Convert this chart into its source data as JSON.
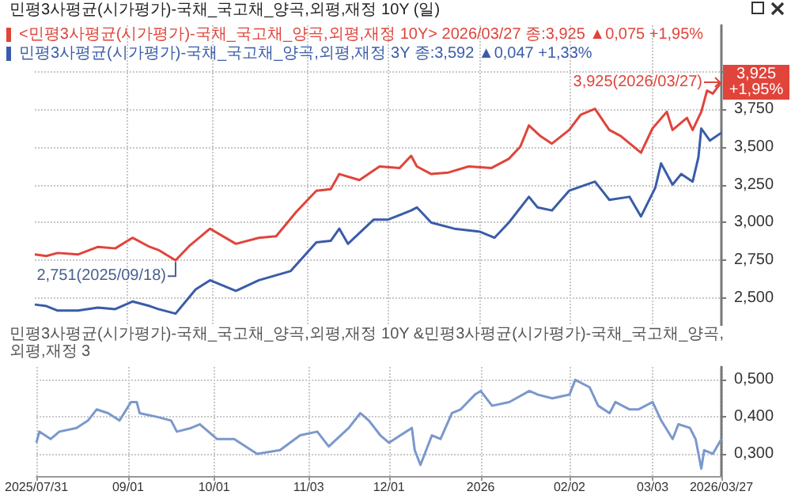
{
  "chart_data": [
    {
      "type": "line",
      "title": "민평3사평균(시가평가)-국채_국고채_양곡,외평,재정 10Y (일)",
      "legend": "top left",
      "grid": true,
      "marker": "none",
      "tick_labels": "y",
      "xlim": [
        "2025-07-31",
        "2026-03-27"
      ],
      "xticks": [
        {
          "value": "2025-09-01",
          "label": null
        },
        {
          "value": "2025-10-01",
          "label": null
        },
        {
          "value": "2025-11-03",
          "label": null
        },
        {
          "value": "2025-12-01",
          "label": null
        },
        {
          "value": "2026-01-02",
          "label": null
        },
        {
          "value": "2026-02-02",
          "label": null
        },
        {
          "value": "2026-03-03",
          "label": null
        }
      ],
      "ylim": [
        2.32,
        4.3
      ],
      "yticks": [
        {
          "value": 2.5,
          "label": "2,500"
        },
        {
          "value": 2.75,
          "label": "2,750"
        },
        {
          "value": 3,
          "label": "3,000"
        },
        {
          "value": 3.25,
          "label": "3,250"
        },
        {
          "value": 3.5,
          "label": "3,500"
        },
        {
          "value": 3.75,
          "label": "3,750"
        },
        {
          "value": 4,
          "label": null
        }
      ],
      "annotations": [
        {
          "text": "3,925(2026/03/27)",
          "x": "2026-03-27",
          "y": 3.925
        },
        {
          "text": "2,751(2025/09/18)",
          "x": "2025-09-18",
          "y": 2.751
        },
        "3,925\n+1,95%"
      ],
      "series": [
        {
          "name": "<민평3사평균(시가평가)-국채_국고채_양곡,외평,재정 10Y> 2026/03/27 종:3,925 ▲0,075 +1,95%",
          "color": "#e0443a",
          "x": [
            "2025-07-31",
            "2025-08-04",
            "2025-08-08",
            "2025-08-15",
            "2025-08-22",
            "2025-08-28",
            "2025-09-03",
            "2025-09-09",
            "2025-09-12",
            "2025-09-18",
            "2025-09-23",
            "2025-09-30",
            "2025-10-09",
            "2025-10-17",
            "2025-10-23",
            "2025-10-30",
            "2025-11-06",
            "2025-11-11",
            "2025-11-14",
            "2025-11-21",
            "2025-11-28",
            "2025-12-05",
            "2025-12-09",
            "2025-12-11",
            "2025-12-16",
            "2025-12-22",
            "2025-12-29",
            "2026-01-06",
            "2026-01-12",
            "2026-01-16",
            "2026-01-19",
            "2026-01-23",
            "2026-01-27",
            "2026-02-02",
            "2026-02-06",
            "2026-02-11",
            "2026-02-16",
            "2026-02-20",
            "2026-02-27",
            "2026-03-03",
            "2026-03-08",
            "2026-03-10",
            "2026-03-15",
            "2026-03-17",
            "2026-03-20",
            "2026-03-22",
            "2026-03-24",
            "2026-03-27"
          ],
          "values": [
            2.79,
            2.78,
            2.8,
            2.79,
            2.84,
            2.83,
            2.9,
            2.84,
            2.82,
            2.751,
            2.85,
            2.96,
            2.86,
            2.9,
            2.91,
            3.07,
            3.21,
            3.22,
            3.32,
            3.28,
            3.37,
            3.36,
            3.44,
            3.37,
            3.32,
            3.33,
            3.37,
            3.36,
            3.42,
            3.5,
            3.64,
            3.57,
            3.52,
            3.61,
            3.71,
            3.75,
            3.61,
            3.57,
            3.46,
            3.62,
            3.73,
            3.61,
            3.69,
            3.61,
            3.73,
            3.87,
            3.85,
            3.925
          ]
        },
        {
          "name": "민평3사평균(시가평가)-국채_국고채_양곡,외평,재정 3Y 종:3,592 ▲0,047 +1,33%",
          "color": "#3a5ca8",
          "x": [
            "2025-07-31",
            "2025-08-04",
            "2025-08-08",
            "2025-08-15",
            "2025-08-22",
            "2025-08-28",
            "2025-09-03",
            "2025-09-09",
            "2025-09-12",
            "2025-09-18",
            "2025-09-25",
            "2025-09-30",
            "2025-10-09",
            "2025-10-17",
            "2025-10-28",
            "2025-11-06",
            "2025-11-11",
            "2025-11-14",
            "2025-11-17",
            "2025-11-26",
            "2025-12-01",
            "2025-12-09",
            "2025-12-11",
            "2025-12-16",
            "2025-12-24",
            "2026-01-02",
            "2026-01-07",
            "2026-01-12",
            "2026-01-19",
            "2026-01-22",
            "2026-01-27",
            "2026-02-02",
            "2026-02-11",
            "2026-02-16",
            "2026-02-23",
            "2026-02-27",
            "2026-03-04",
            "2026-03-06",
            "2026-03-10",
            "2026-03-13",
            "2026-03-17",
            "2026-03-19",
            "2026-03-20",
            "2026-03-23",
            "2026-03-27"
          ],
          "values": [
            2.46,
            2.45,
            2.42,
            2.42,
            2.44,
            2.43,
            2.48,
            2.45,
            2.43,
            2.4,
            2.56,
            2.62,
            2.55,
            2.62,
            2.68,
            2.87,
            2.88,
            2.96,
            2.86,
            3.02,
            3.02,
            3.08,
            3.1,
            3.0,
            2.96,
            2.94,
            2.9,
            3.0,
            3.17,
            3.1,
            3.08,
            3.21,
            3.27,
            3.15,
            3.17,
            3.04,
            3.23,
            3.39,
            3.25,
            3.32,
            3.27,
            3.43,
            3.62,
            3.54,
            3.592
          ]
        }
      ]
    },
    {
      "type": "line",
      "title": "민평3사평균(시가평가)-국채_국고채_양곡,외평,재정 10Y &민평3사평균(시가평가)-국채_국고채_양곡,외평,재정 3",
      "grid": true,
      "marker": "none",
      "xlim": [
        "2025-07-31",
        "2026-03-27"
      ],
      "xticks": [
        {
          "value": "2025-07-31",
          "label": "2025/07/31"
        },
        {
          "value": "2025-09-01",
          "label": "09/01"
        },
        {
          "value": "2025-10-01",
          "label": "10/01"
        },
        {
          "value": "2025-11-03",
          "label": "11/03"
        },
        {
          "value": "2025-12-01",
          "label": "12/01"
        },
        {
          "value": "2026-01-02",
          "label": "2026"
        },
        {
          "value": "2026-02-02",
          "label": "02/02"
        },
        {
          "value": "2026-03-03",
          "label": "03/03"
        },
        {
          "value": "2026-03-27",
          "label": "2026/03/27"
        }
      ],
      "ylim": [
        0.24,
        0.535
      ],
      "yticks": [
        {
          "value": 0.3,
          "label": "0,300"
        },
        {
          "value": 0.4,
          "label": "0,400"
        },
        {
          "value": 0.5,
          "label": "0,500"
        }
      ],
      "series": [
        {
          "color": "#7b98cc",
          "x": [
            "2025-07-31",
            "2025-08-01",
            "2025-08-05",
            "2025-08-08",
            "2025-08-14",
            "2025-08-18",
            "2025-08-21",
            "2025-08-25",
            "2025-08-29",
            "2025-09-02",
            "2025-09-04",
            "2025-09-05",
            "2025-09-11",
            "2025-09-16",
            "2025-09-18",
            "2025-09-23",
            "2025-09-26",
            "2025-10-02",
            "2025-10-08",
            "2025-10-16",
            "2025-10-24",
            "2025-10-31",
            "2025-11-06",
            "2025-11-10",
            "2025-11-17",
            "2025-11-21",
            "2025-11-24",
            "2025-11-28",
            "2025-12-01",
            "2025-12-05",
            "2025-12-09",
            "2025-12-10",
            "2025-12-12",
            "2025-12-16",
            "2025-12-19",
            "2025-12-23",
            "2025-12-26",
            "2025-12-31",
            "2026-01-02",
            "2026-01-06",
            "2026-01-12",
            "2026-01-19",
            "2026-01-22",
            "2026-01-27",
            "2026-02-02",
            "2026-02-04",
            "2026-02-09",
            "2026-02-12",
            "2026-02-16",
            "2026-02-18",
            "2026-02-23",
            "2026-02-26",
            "2026-03-03",
            "2026-03-06",
            "2026-03-10",
            "2026-03-12",
            "2026-03-16",
            "2026-03-18",
            "2026-03-20",
            "2026-03-21",
            "2026-03-24",
            "2026-03-27"
          ],
          "values": [
            0.33,
            0.36,
            0.34,
            0.36,
            0.37,
            0.39,
            0.42,
            0.41,
            0.39,
            0.44,
            0.44,
            0.41,
            0.4,
            0.39,
            0.36,
            0.37,
            0.38,
            0.34,
            0.34,
            0.3,
            0.31,
            0.35,
            0.36,
            0.32,
            0.37,
            0.41,
            0.39,
            0.35,
            0.33,
            0.35,
            0.37,
            0.31,
            0.27,
            0.35,
            0.34,
            0.41,
            0.42,
            0.46,
            0.47,
            0.43,
            0.44,
            0.47,
            0.46,
            0.45,
            0.46,
            0.5,
            0.48,
            0.43,
            0.41,
            0.44,
            0.42,
            0.42,
            0.44,
            0.39,
            0.34,
            0.38,
            0.37,
            0.34,
            0.26,
            0.31,
            0.3,
            0.34
          ]
        }
      ]
    }
  ]
}
